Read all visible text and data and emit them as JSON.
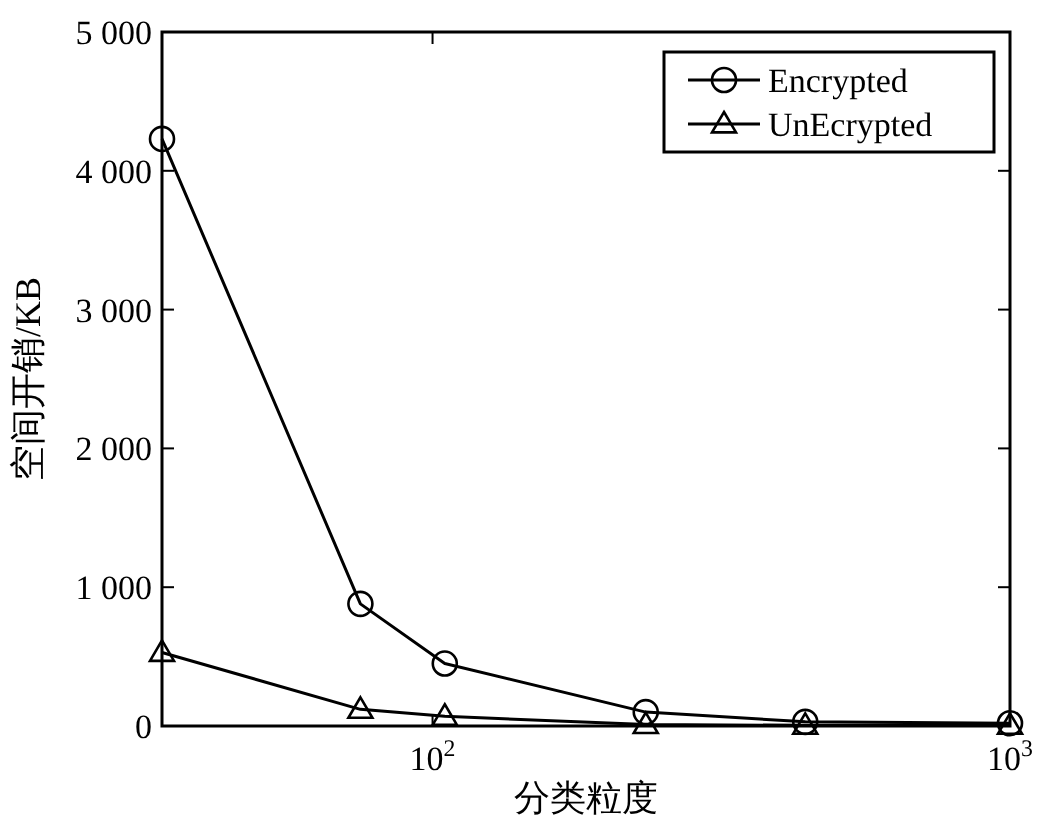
{
  "chart_data": {
    "type": "line",
    "xlabel": "分类粒度",
    "ylabel": "空间开销/KB",
    "log": "x",
    "xlim": [
      34,
      1000
    ],
    "xticks": [
      {
        "value": 100,
        "label": "10$^{2}$"
      },
      {
        "value": 1000,
        "label": "10$^{3}$"
      }
    ],
    "ylim": [
      0,
      5000
    ],
    "yticks": [
      0,
      {
        "value": 1000,
        "label": "1 000"
      },
      {
        "value": 2000,
        "label": "2 000"
      },
      {
        "value": 3000,
        "label": "3 000"
      },
      {
        "value": 4000,
        "label": "4 000"
      },
      {
        "value": 5000,
        "label": "5 000"
      }
    ],
    "x": [
      34,
      75,
      105,
      234,
      442,
      1000
    ],
    "series": [
      {
        "name": "Encrypted",
        "color": "#000000",
        "marker": "circle",
        "values": [
          4230,
          880,
          450,
          100,
          30,
          20
        ]
      },
      {
        "name": "UnEcrypted",
        "color": "#000000",
        "marker": "triangle",
        "values": [
          530,
          120,
          70,
          10,
          5,
          5
        ]
      }
    ],
    "legend": "top right",
    "grid": false,
    "line_style": "solid"
  }
}
